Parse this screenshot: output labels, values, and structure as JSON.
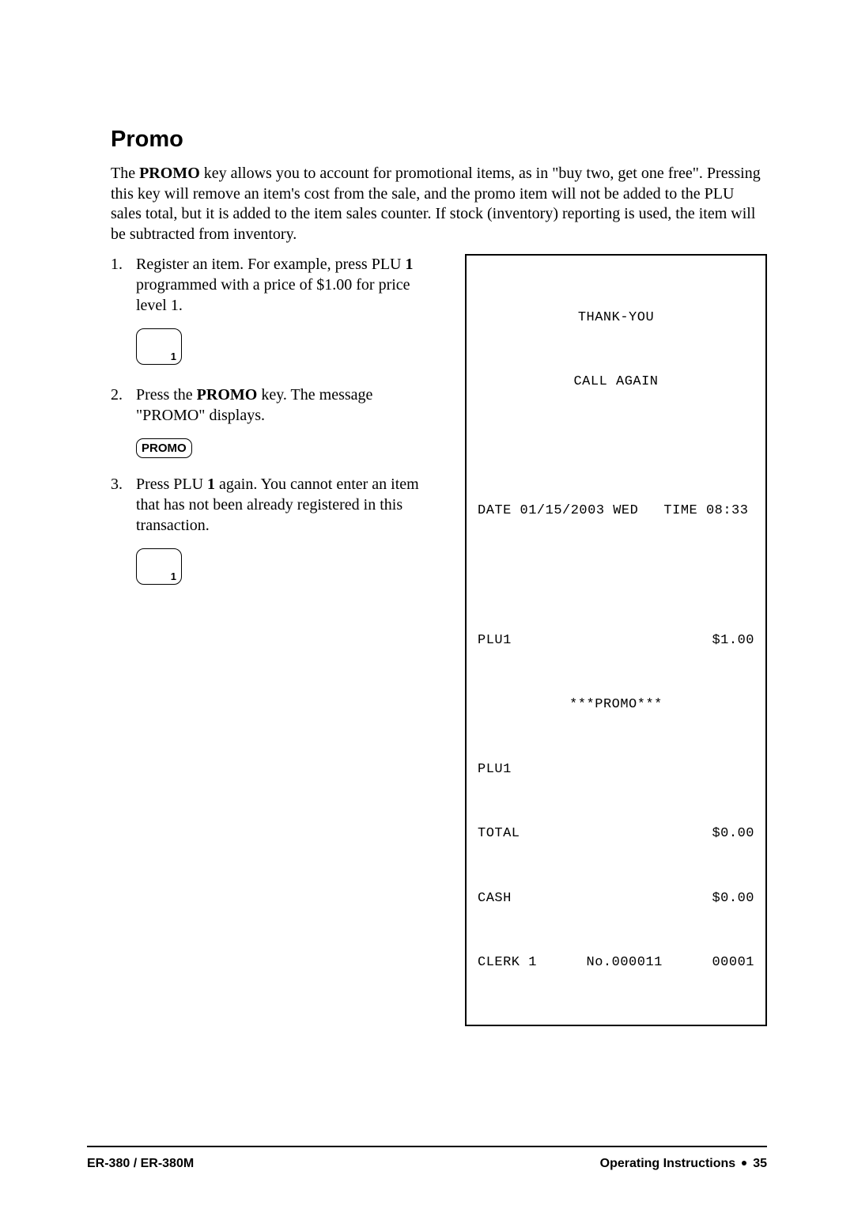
{
  "section": {
    "title": "Promo",
    "intro_part1": "The ",
    "intro_bold1": "PROMO",
    "intro_part2": " key allows you to account for promotional items, as in \"buy two, get one free\". Pressing this key will remove an item's cost from the sale, and the promo item will not be added to the PLU sales total, but it is added to the item sales counter.   If stock (inventory) reporting is used, the item will be subtracted from inventory."
  },
  "steps": {
    "s1_num": "1.",
    "s1_a": "Register an item.   For example, press PLU ",
    "s1_b": "1",
    "s1_c": " programmed with a price of $1.00 for price level 1.",
    "s2_num": "2.",
    "s2_a": "Press the ",
    "s2_b": "PROMO",
    "s2_c": " key.   The message \"PROMO\" displays.",
    "s3_num": "3.",
    "s3_a": "Press PLU ",
    "s3_b": "1",
    "s3_c": " again.   You cannot enter an item that has not been already registered in this transaction."
  },
  "key_promo_label": "PROMO",
  "receipt": {
    "header1": "THANK-YOU",
    "header2": "CALL AGAIN",
    "date_line": "DATE 01/15/2003 WED   TIME 08:33",
    "plu1_label": "PLU1",
    "plu1_amount": "$1.00",
    "promo_center": "***PROMO***",
    "plu1_label2": "PLU1",
    "total_label": "TOTAL",
    "total_amount": "$0.00",
    "cash_label": "CASH",
    "cash_amount": "$0.00",
    "clerk_label": "CLERK 1",
    "clerk_no": "No.000011",
    "clerk_seq": "00001"
  },
  "footer": {
    "left": "ER-380 / ER-380M",
    "right_text": "Operating Instructions",
    "page_num": "35"
  }
}
